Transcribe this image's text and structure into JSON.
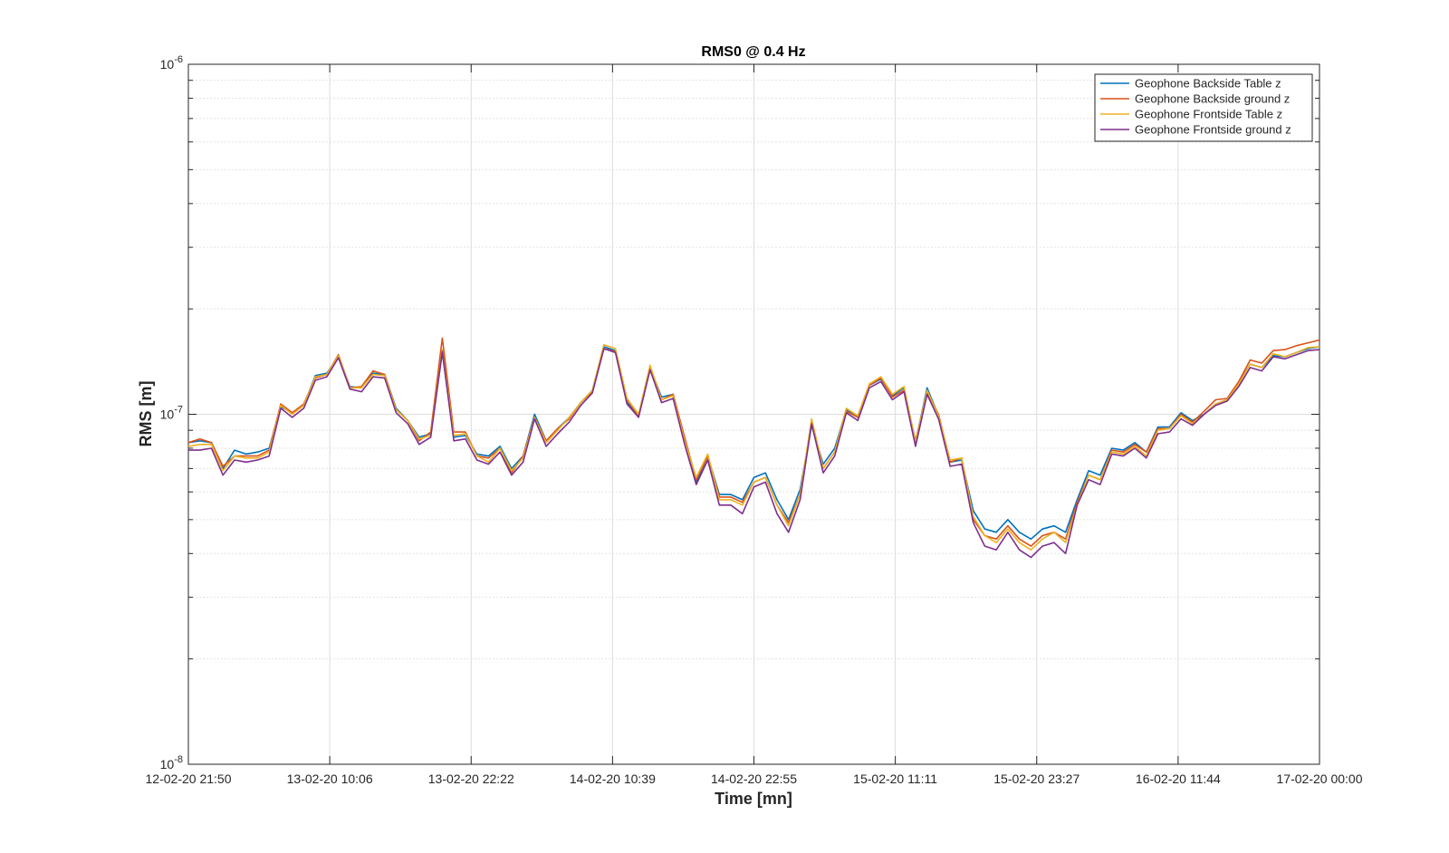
{
  "chart_data": {
    "type": "line",
    "title": "RMS0 @ 0.4 Hz",
    "xlabel": "Time [mn]",
    "ylabel": "RMS [m]",
    "y_scale": "log",
    "ylim": [
      1e-08,
      1e-06
    ],
    "xlim": [
      "12-02-20 21:50",
      "17-02-20 00:00"
    ],
    "y_major_ticks": [
      {
        "value": 1e-08,
        "base": "10",
        "exp": "-8"
      },
      {
        "value": 1e-07,
        "base": "10",
        "exp": "-7"
      },
      {
        "value": 1e-06,
        "base": "10",
        "exp": "-6"
      }
    ],
    "x_ticks": [
      "12-02-20 21:50",
      "13-02-20 10:06",
      "13-02-20 22:22",
      "14-02-20 10:39",
      "14-02-20 22:55",
      "15-02-20 11:11",
      "15-02-20 23:27",
      "16-02-20 11:44",
      "17-02-20 00:00"
    ],
    "grid": true,
    "legend_position": "top-right",
    "colors": [
      "#0072BD",
      "#D95319",
      "#EDB120",
      "#7E2F8E"
    ],
    "series": [
      {
        "name": "Geophone Backside Table z",
        "color": "#0072BD",
        "values": [
          8.3,
          8.4,
          8.3,
          7.0,
          7.9,
          7.7,
          7.8,
          8.0,
          10.5,
          10.1,
          10.6,
          12.9,
          13.1,
          14.6,
          12.0,
          11.9,
          13.1,
          13.0,
          10.4,
          9.6,
          8.6,
          8.8,
          15.0,
          8.6,
          8.7,
          7.7,
          7.6,
          8.1,
          7.0,
          7.6,
          10.0,
          8.4,
          9.1,
          9.8,
          10.8,
          11.7,
          15.6,
          15.2,
          10.8,
          9.9,
          13.6,
          11.2,
          11.4,
          8.5,
          6.4,
          7.6,
          5.9,
          5.9,
          5.7,
          6.6,
          6.8,
          5.7,
          5.0,
          6.1,
          9.3,
          7.2,
          8.0,
          10.3,
          9.9,
          12.1,
          12.6,
          11.3,
          11.9,
          8.3,
          11.9,
          9.9,
          7.3,
          7.4,
          5.3,
          4.7,
          4.6,
          5.0,
          4.6,
          4.4,
          4.7,
          4.8,
          4.6,
          5.7,
          6.9,
          6.7,
          8.0,
          7.9,
          8.3,
          7.8,
          9.2,
          9.2,
          10.1,
          9.6,
          10.0,
          10.7,
          11.0,
          12.3,
          13.9,
          13.6,
          14.7,
          14.6,
          15.0,
          15.4,
          15.6
        ]
      },
      {
        "name": "Geophone Backside ground z",
        "color": "#D95319",
        "values": [
          8.3,
          8.5,
          8.3,
          7.1,
          7.6,
          7.6,
          7.6,
          7.9,
          10.7,
          10.1,
          10.7,
          12.7,
          13.0,
          14.8,
          11.9,
          12.0,
          13.3,
          13.0,
          10.3,
          9.6,
          8.4,
          8.9,
          16.5,
          8.9,
          8.9,
          7.6,
          7.5,
          8.0,
          6.8,
          7.6,
          9.8,
          8.4,
          9.1,
          9.7,
          10.8,
          11.6,
          15.4,
          15.1,
          11.0,
          9.9,
          13.7,
          11.0,
          11.4,
          8.6,
          6.5,
          7.6,
          5.8,
          5.8,
          5.6,
          6.4,
          6.6,
          5.5,
          4.9,
          5.9,
          9.5,
          7.0,
          7.8,
          10.2,
          9.8,
          12.1,
          12.7,
          11.2,
          11.7,
          8.4,
          11.5,
          10.0,
          7.3,
          7.5,
          5.0,
          4.5,
          4.4,
          4.8,
          4.4,
          4.2,
          4.5,
          4.6,
          4.4,
          5.6,
          6.7,
          6.5,
          7.9,
          7.8,
          8.2,
          7.8,
          9.1,
          9.1,
          10.0,
          9.5,
          10.2,
          11.0,
          11.1,
          12.4,
          14.3,
          14.0,
          15.2,
          15.3,
          15.7,
          16.0,
          16.3
        ]
      },
      {
        "name": "Geophone Frontside Table z",
        "color": "#EDB120",
        "values": [
          8.1,
          8.2,
          8.2,
          6.9,
          7.6,
          7.5,
          7.5,
          7.8,
          10.6,
          10.0,
          10.6,
          12.8,
          13.0,
          14.7,
          11.9,
          11.9,
          13.0,
          12.9,
          10.3,
          9.6,
          8.5,
          8.7,
          15.3,
          8.7,
          8.8,
          7.6,
          7.3,
          8.0,
          6.9,
          7.5,
          9.8,
          8.3,
          9.0,
          9.8,
          10.8,
          11.7,
          15.8,
          15.4,
          11.1,
          10.0,
          13.8,
          11.0,
          11.3,
          8.4,
          6.6,
          7.7,
          5.7,
          5.7,
          5.5,
          6.4,
          6.6,
          5.5,
          4.8,
          5.9,
          9.7,
          7.0,
          7.8,
          10.4,
          9.9,
          12.2,
          12.8,
          11.4,
          12.0,
          8.3,
          11.7,
          9.9,
          7.4,
          7.5,
          5.1,
          4.5,
          4.3,
          4.7,
          4.3,
          4.1,
          4.4,
          4.6,
          4.3,
          5.5,
          6.7,
          6.5,
          7.8,
          7.7,
          8.1,
          7.6,
          9.0,
          9.1,
          9.9,
          9.4,
          10.0,
          10.7,
          11.0,
          12.2,
          13.9,
          13.6,
          14.9,
          14.6,
          15.0,
          15.5,
          15.6
        ]
      },
      {
        "name": "Geophone Frontside ground z",
        "color": "#7E2F8E",
        "values": [
          7.9,
          7.9,
          8.0,
          6.7,
          7.4,
          7.3,
          7.4,
          7.6,
          10.4,
          9.8,
          10.4,
          12.5,
          12.8,
          14.5,
          11.8,
          11.6,
          12.8,
          12.7,
          10.1,
          9.4,
          8.2,
          8.6,
          15.1,
          8.4,
          8.5,
          7.4,
          7.2,
          7.8,
          6.7,
          7.3,
          9.7,
          8.1,
          8.8,
          9.5,
          10.6,
          11.5,
          15.4,
          15.0,
          10.7,
          9.8,
          13.4,
          10.8,
          11.1,
          8.2,
          6.3,
          7.4,
          5.5,
          5.5,
          5.2,
          6.2,
          6.4,
          5.2,
          4.6,
          5.7,
          9.4,
          6.8,
          7.6,
          10.1,
          9.6,
          11.9,
          12.4,
          11.0,
          11.6,
          8.1,
          11.4,
          9.7,
          7.1,
          7.2,
          4.9,
          4.2,
          4.1,
          4.6,
          4.1,
          3.9,
          4.2,
          4.3,
          4.0,
          5.5,
          6.5,
          6.3,
          7.7,
          7.6,
          8.0,
          7.5,
          8.8,
          8.9,
          9.7,
          9.3,
          10.0,
          10.6,
          10.9,
          12.0,
          13.6,
          13.3,
          14.6,
          14.4,
          14.8,
          15.2,
          15.3
        ]
      }
    ],
    "value_unit_multiplier": 1e-08
  }
}
